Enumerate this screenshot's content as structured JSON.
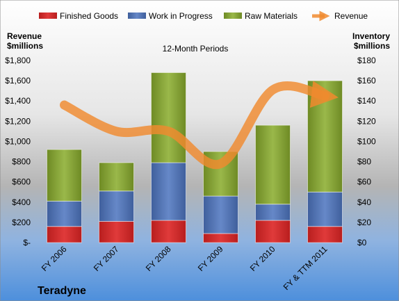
{
  "chart_data": {
    "type": "bar",
    "company": "Teradyne",
    "subtitle": "12-Month Periods",
    "left_axis_label": [
      "Revenue",
      "$millions"
    ],
    "right_axis_label": [
      "Inventory",
      "$millions"
    ],
    "categories": [
      "FY 2006",
      "FY 2007",
      "FY 2008",
      "FY 2009",
      "FY 2010",
      "FY & TTM 2011"
    ],
    "left_ticks": [
      "$-",
      "$200",
      "$400",
      "$600",
      "$800",
      "$1,000",
      "$1,200",
      "$1,400",
      "$1,600",
      "$1,800"
    ],
    "right_ticks": [
      "$0",
      "$20",
      "$40",
      "$60",
      "$80",
      "$100",
      "$120",
      "$140",
      "$160",
      "$180"
    ],
    "ylim_left": [
      0,
      1800
    ],
    "ylim_right": [
      0,
      180
    ],
    "stacked_bars_axis": "right",
    "series": [
      {
        "name": "Finished Goods",
        "type": "bar",
        "color": "#d42a2a",
        "values": [
          16,
          21,
          22,
          9,
          22,
          16
        ]
      },
      {
        "name": "Work in Progress",
        "type": "bar",
        "color": "#4f73b2",
        "values": [
          25,
          30,
          57,
          37,
          16,
          34
        ]
      },
      {
        "name": "Raw Materials",
        "type": "bar",
        "color": "#8aa83a",
        "values": [
          51,
          28,
          89,
          44,
          78,
          110
        ]
      },
      {
        "name": "Revenue",
        "type": "line",
        "axis": "left",
        "color": "#f08a2e",
        "values": [
          1360,
          1100,
          1100,
          780,
          1510,
          1450
        ]
      }
    ],
    "legend_position": "top",
    "grid": false
  }
}
